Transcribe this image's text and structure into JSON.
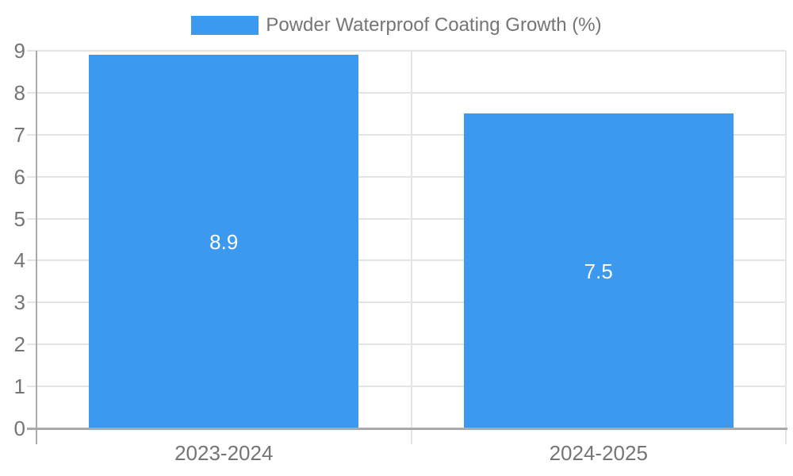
{
  "legend": {
    "label": "Powder Waterproof Coating Growth (%)"
  },
  "colors": {
    "bar": "#3B99F0",
    "grid": "#e4e4e4",
    "axis": "#aaaaaa",
    "text": "#757575",
    "value_label": "#ffffff",
    "background": "#ffffff"
  },
  "chart_data": {
    "type": "bar",
    "title": "Powder Waterproof Coating Growth (%)",
    "categories": [
      "2023-2024",
      "2024-2025"
    ],
    "series": [
      {
        "name": "Powder Waterproof Coating Growth (%)",
        "values": [
          8.9,
          7.5
        ]
      }
    ],
    "data_labels": [
      "8.9",
      "7.5"
    ],
    "xlabel": "",
    "ylabel": "",
    "ylim": [
      0,
      9
    ],
    "ytick_step": 1,
    "yticks": [
      0,
      1,
      2,
      3,
      4,
      5,
      6,
      7,
      8,
      9
    ],
    "grid": true,
    "legend_position": "top-center",
    "bar_label_position": "center"
  }
}
